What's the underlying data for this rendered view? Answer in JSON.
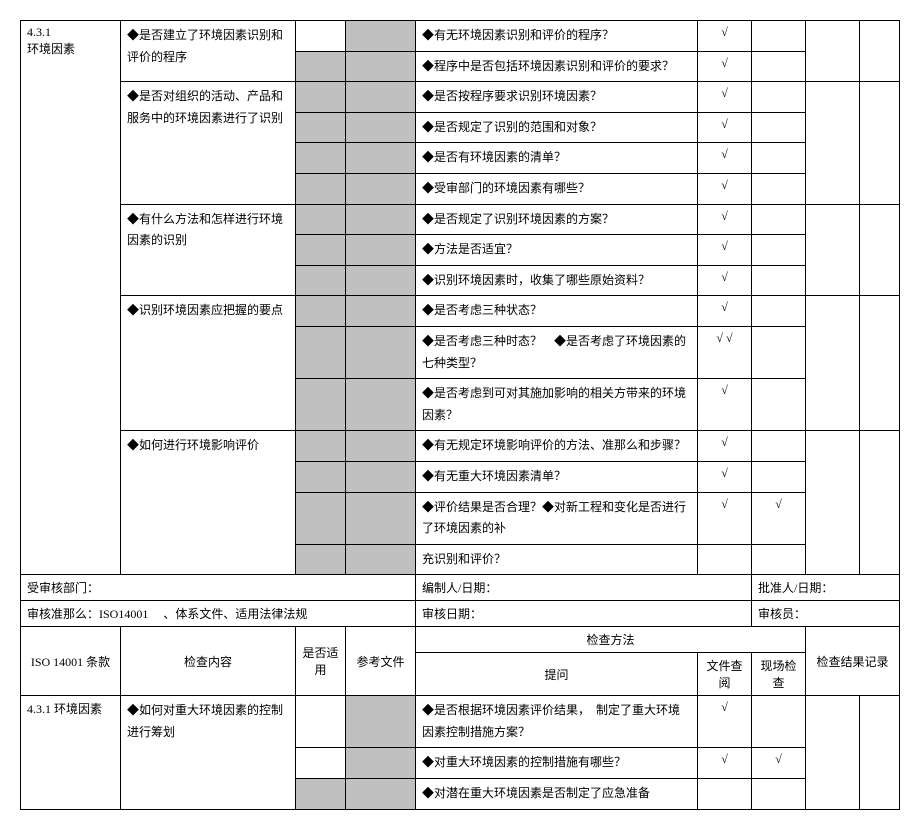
{
  "colwidths": {
    "c1": 100,
    "c2": 175,
    "c3": 50,
    "c4": 70,
    "c5": 282,
    "c6": 54,
    "c7": 54,
    "c8": 54,
    "c9": 40
  },
  "section1": {
    "clause": "4.3.1",
    "clauseTitle": "环境因素",
    "rows": [
      {
        "content": "◆是否建立了环境因素识别和评价的程序",
        "c3shadedRows": [
          false,
          true
        ],
        "questions": [
          {
            "text": "◆有无环境因素识别和评价的程序？",
            "doc": "√",
            "site": "",
            "rec": ""
          },
          {
            "text": "◆程序中是否包括环境因素识别和评价的要求？",
            "doc": "√",
            "site": "",
            "rec": ""
          }
        ]
      },
      {
        "content": "◆是否对组织的活动、产品和服务中的环境因素进行了识别",
        "c3shadedRows": [
          true,
          true,
          true,
          true
        ],
        "questions": [
          {
            "text": "◆是否按程序要求识别环境因素？",
            "doc": "√",
            "site": "",
            "rec": ""
          },
          {
            "text": "◆是否规定了识别的范围和对象？",
            "doc": "√",
            "site": "",
            "rec": ""
          },
          {
            "text": "◆是否有环境因素的清单？",
            "doc": "√",
            "site": "",
            "rec": ""
          },
          {
            "text": "◆受审部门的环境因素有哪些？",
            "doc": "√",
            "site": "",
            "rec": ""
          }
        ]
      },
      {
        "content": "◆有什么方法和怎样进行环境因素的识别",
        "c3shadedRows": [
          true,
          true,
          true
        ],
        "questions": [
          {
            "text": "◆是否规定了识别环境因素的方案？",
            "doc": "√",
            "site": "",
            "rec": ""
          },
          {
            "text": "◆方法是否适宜？",
            "doc": "√",
            "site": "",
            "rec": ""
          },
          {
            "text": "◆识别环境因素时，收集了哪些原始资料？",
            "doc": "√",
            "site": "",
            "rec": ""
          }
        ]
      },
      {
        "content": "◆识别环境因素应把握的要点",
        "c3shadedRows": [
          true,
          true,
          true
        ],
        "questions": [
          {
            "text": "◆是否考虑三种状态？",
            "doc": "√",
            "site": "",
            "rec": ""
          },
          {
            "text": "◆是否考虑三种时态？　◆是否考虑了环境因素的七种类型？",
            "doc": "√ √",
            "site": "",
            "rec": ""
          },
          {
            "text": "◆是否考虑到可对其施加影响的相关方带来的环境因素？",
            "doc": "√",
            "site": "",
            "rec": ""
          }
        ]
      },
      {
        "content": "◆如何进行环境影响评价",
        "c3shadedRows": [
          true,
          true,
          true,
          true
        ],
        "questions": [
          {
            "text": "◆有无规定环境影响评价的方法、准那么和步骤？",
            "doc": "√",
            "site": "",
            "rec": ""
          },
          {
            "text": "◆有无重大环境因素清单？",
            "doc": "√",
            "site": "",
            "rec": ""
          },
          {
            "text": "◆评价结果是否合理？◆对新工程和变化是否进行了环境因素的补",
            "doc": "√",
            "site": "√",
            "rec": ""
          },
          {
            "text": "充识别和评价？",
            "doc": "",
            "site": "",
            "rec": ""
          }
        ]
      }
    ]
  },
  "metaRow1": {
    "label1": "受审核部门：",
    "label2": "编制人/日期：",
    "label3": "批准人/日期："
  },
  "metaRow2": {
    "label1": "审核准那么：ISO14001 　、体系文件、适用法律法规",
    "label2": "审核日期：",
    "label3": "审核员："
  },
  "header": {
    "c1": "ISO 14001 条款",
    "c2": "检查内容",
    "c3": "是否适用",
    "c4": "参考文件",
    "methods": "检查方法",
    "q": "提问",
    "doc": "文件查阅",
    "site": "现场检查",
    "rec": "检查结果记录"
  },
  "section2": {
    "clause": "4.3.1 环境因素",
    "rows": [
      {
        "content": "◆如何对重大环境因素的控制进行筹划",
        "c3shadedRows": [
          false,
          false,
          true
        ],
        "questions": [
          {
            "text": "◆是否根据环境因素评价结果，　制定了重大环境因素控制措施方案？",
            "doc": "√",
            "site": "",
            "rec": ""
          },
          {
            "text": "◆对重大环境因素的控制措施有哪些？",
            "doc": "√",
            "site": "√",
            "rec": ""
          },
          {
            "text": "◆对潜在重大环境因素是否制定了应急准备",
            "doc": "",
            "site": "",
            "rec": ""
          }
        ]
      }
    ]
  }
}
